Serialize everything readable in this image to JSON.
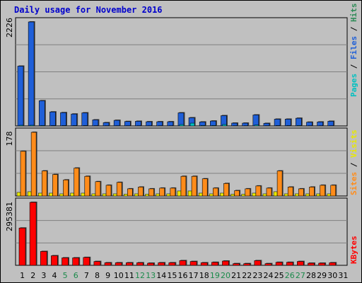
{
  "title": "Daily usage for November 2016",
  "colors": {
    "background": "#c0c0c0",
    "plot_bg": "#c0c0c0",
    "pages": "#00c0c0",
    "files": "#1f5fd8",
    "hits": "#2e8b57",
    "visits": "#e8e800",
    "sites": "#ff8c1a",
    "kbytes": "#ff0000",
    "title": "#0000cc",
    "weekend_day": "#1a8a4a"
  },
  "chart_data": [
    {
      "type": "bar",
      "name": "hits-files-pages",
      "y_max_label": "2226",
      "ylim": [
        0,
        2226
      ],
      "categories": [
        "1",
        "2",
        "3",
        "4",
        "5",
        "6",
        "7",
        "8",
        "9",
        "10",
        "11",
        "12",
        "13",
        "14",
        "15",
        "16",
        "17",
        "18",
        "19",
        "20",
        "21",
        "22",
        "23",
        "24",
        "25",
        "26",
        "27",
        "28",
        "29",
        "30",
        "31"
      ],
      "series": [
        {
          "name": "Hits",
          "values": [
            1280,
            2226,
            540,
            300,
            285,
            255,
            280,
            130,
            70,
            120,
            95,
            100,
            90,
            90,
            90,
            280,
            175,
            85,
            105,
            220,
            60,
            60,
            235,
            55,
            145,
            145,
            165,
            80,
            85,
            100,
            0
          ]
        },
        {
          "name": "Files",
          "values": [
            1280,
            2226,
            540,
            300,
            285,
            255,
            280,
            130,
            70,
            120,
            95,
            100,
            90,
            90,
            90,
            280,
            175,
            85,
            105,
            220,
            60,
            60,
            235,
            55,
            145,
            145,
            165,
            80,
            85,
            100,
            0
          ]
        },
        {
          "name": "Pages",
          "values": [
            15,
            15,
            10,
            8,
            8,
            8,
            8,
            6,
            5,
            5,
            5,
            5,
            5,
            5,
            5,
            30,
            60,
            10,
            10,
            30,
            5,
            5,
            20,
            5,
            8,
            8,
            10,
            5,
            5,
            5,
            0
          ]
        }
      ],
      "legend": [
        "Pages",
        "Files",
        "Hits"
      ]
    },
    {
      "type": "bar",
      "name": "visits-sites",
      "y_max_label": "178",
      "ylim": [
        0,
        178
      ],
      "categories": [
        "1",
        "2",
        "3",
        "4",
        "5",
        "6",
        "7",
        "8",
        "9",
        "10",
        "11",
        "12",
        "13",
        "14",
        "15",
        "16",
        "17",
        "18",
        "19",
        "20",
        "21",
        "22",
        "23",
        "24",
        "25",
        "26",
        "27",
        "28",
        "29",
        "30",
        "31"
      ],
      "series": [
        {
          "name": "Sites",
          "values": [
            125,
            178,
            70,
            60,
            45,
            78,
            55,
            40,
            30,
            38,
            20,
            25,
            20,
            22,
            22,
            55,
            55,
            48,
            22,
            35,
            15,
            20,
            28,
            22,
            70,
            25,
            20,
            25,
            30,
            30,
            0
          ]
        },
        {
          "name": "Visits",
          "values": [
            10,
            12,
            8,
            8,
            6,
            8,
            8,
            6,
            6,
            6,
            5,
            6,
            5,
            6,
            6,
            14,
            14,
            8,
            6,
            8,
            5,
            5,
            8,
            6,
            12,
            6,
            6,
            6,
            6,
            6,
            0
          ]
        }
      ],
      "legend": [
        "Sites",
        "Visits"
      ]
    },
    {
      "type": "bar",
      "name": "kbytes",
      "y_max_label": "295381",
      "ylim": [
        0,
        295381
      ],
      "categories": [
        "1",
        "2",
        "3",
        "4",
        "5",
        "6",
        "7",
        "8",
        "9",
        "10",
        "11",
        "12",
        "13",
        "14",
        "15",
        "16",
        "17",
        "18",
        "19",
        "20",
        "21",
        "22",
        "23",
        "24",
        "25",
        "26",
        "27",
        "28",
        "29",
        "30",
        "31"
      ],
      "series": [
        {
          "name": "KBytes",
          "values": [
            175000,
            295381,
            65000,
            45000,
            35000,
            35000,
            37000,
            18000,
            12000,
            12000,
            12000,
            12000,
            10000,
            12000,
            12000,
            22000,
            18000,
            12000,
            14000,
            20000,
            8000,
            8000,
            22000,
            8000,
            14000,
            14000,
            18000,
            10000,
            10000,
            12000,
            0
          ]
        }
      ],
      "legend": [
        "KBytes"
      ]
    }
  ],
  "x_labels": [
    "1",
    "2",
    "3",
    "4",
    "5",
    "6",
    "7",
    "8",
    "9",
    "10",
    "11",
    "12",
    "13",
    "14",
    "15",
    "16",
    "17",
    "18",
    "19",
    "20",
    "21",
    "22",
    "23",
    "24",
    "25",
    "26",
    "27",
    "28",
    "29",
    "30",
    "31"
  ],
  "weekend_days": [
    "5",
    "6",
    "12",
    "13",
    "19",
    "20",
    "26",
    "27"
  ]
}
